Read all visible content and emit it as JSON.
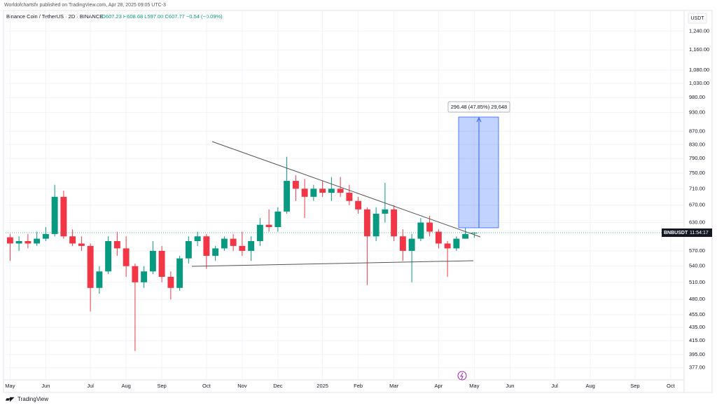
{
  "header": {
    "publisher": "Worldofchartsfx published on TradingView.com, Apr 28, 2025 09:05 UTC-3",
    "symbol": "Binance Coin / TetherUS · 2D · BINANCE",
    "ohlc": "O607.23 H608.68 L597.00 C607.77 −0.54 (−0.09%)",
    "currency": "USDT",
    "price_label": "BNBUSDT",
    "countdown": "11:54:17",
    "measure": "296.48 (47.85%) 29,648",
    "footer": "TradingView"
  },
  "chart_data": {
    "type": "candlestick",
    "log_scale": true,
    "grid": true,
    "up_color": "#089981",
    "down_color": "#f23645",
    "categories": [
      "May",
      null,
      null,
      null,
      "Jun",
      null,
      null,
      null,
      null,
      "Jul",
      null,
      null,
      null,
      "Aug",
      null,
      null,
      null,
      "Sep",
      null,
      null,
      null,
      null,
      "Oct",
      null,
      null,
      null,
      "Nov",
      null,
      null,
      null,
      "Dec",
      null,
      null,
      null,
      null,
      "2025",
      null,
      null,
      null,
      "Feb",
      null,
      null,
      null,
      "Mar",
      null,
      null,
      null,
      null,
      "Apr",
      null,
      null,
      null,
      "May",
      null,
      null,
      null,
      "Jun",
      null,
      null,
      null,
      null,
      "Jul",
      null,
      null,
      null,
      "Aug",
      null,
      null,
      null,
      null,
      "Sep",
      null,
      null,
      null,
      "Oct",
      null
    ],
    "open": [
      598,
      585,
      590,
      585,
      595,
      605,
      690,
      600,
      585,
      580,
      500,
      530,
      590,
      575,
      540,
      510,
      530,
      570,
      520,
      500,
      555,
      590,
      600,
      560,
      575,
      595,
      580,
      570,
      590,
      625,
      620,
      655,
      730,
      710,
      690,
      710,
      700,
      710,
      700,
      680,
      660,
      600,
      650,
      660,
      600,
      570,
      595,
      630,
      610,
      585,
      575,
      595,
      607.23,
      null,
      null,
      null,
      null,
      null,
      null,
      null,
      null,
      null,
      null,
      null,
      null,
      null,
      null,
      null,
      null,
      null,
      null,
      null,
      null,
      null,
      null,
      null
    ],
    "high": [
      605,
      600,
      605,
      610,
      620,
      720,
      705,
      615,
      600,
      585,
      540,
      600,
      610,
      600,
      545,
      540,
      590,
      580,
      530,
      560,
      600,
      610,
      605,
      580,
      600,
      605,
      610,
      600,
      640,
      660,
      665,
      795,
      745,
      735,
      720,
      730,
      740,
      740,
      720,
      690,
      665,
      665,
      725,
      670,
      615,
      605,
      640,
      645,
      615,
      590,
      600,
      618,
      608.68,
      null,
      null,
      null,
      null,
      null,
      null,
      null,
      null,
      null,
      null,
      null,
      null,
      null,
      null,
      null,
      null,
      null,
      null,
      null,
      null,
      null,
      null,
      null
    ],
    "low": [
      550,
      570,
      575,
      580,
      590,
      600,
      595,
      580,
      570,
      460,
      490,
      525,
      560,
      520,
      400,
      500,
      525,
      510,
      480,
      495,
      545,
      580,
      535,
      550,
      570,
      570,
      560,
      550,
      580,
      610,
      610,
      650,
      680,
      640,
      680,
      690,
      680,
      690,
      670,
      650,
      505,
      590,
      630,
      590,
      550,
      510,
      590,
      600,
      575,
      520,
      570,
      595,
      597.0,
      null,
      null,
      null,
      null,
      null,
      null,
      null,
      null,
      null,
      null,
      null,
      null,
      null,
      null,
      null,
      null,
      null,
      null,
      null,
      null,
      null,
      null,
      null
    ],
    "close": [
      585,
      590,
      585,
      595,
      605,
      690,
      600,
      585,
      580,
      500,
      530,
      590,
      575,
      540,
      510,
      530,
      570,
      520,
      500,
      555,
      590,
      600,
      560,
      575,
      595,
      580,
      570,
      590,
      625,
      620,
      655,
      730,
      710,
      690,
      710,
      700,
      710,
      700,
      680,
      660,
      600,
      650,
      660,
      600,
      570,
      595,
      630,
      610,
      585,
      575,
      595,
      605,
      607.77,
      null,
      null,
      null,
      null,
      null,
      null,
      null,
      null,
      null,
      null,
      null,
      null,
      null,
      null,
      null,
      null,
      null,
      null,
      null,
      null,
      null,
      null,
      null
    ],
    "last": 607.77,
    "ylim": [
      363,
      1350
    ],
    "yticks": [
      {
        "value": 1240,
        "label": "1,240.00"
      },
      {
        "value": 1160,
        "label": "1,160.00"
      },
      {
        "value": 1080,
        "label": "1,080.00"
      },
      {
        "value": 1030,
        "label": "1,030.00"
      },
      {
        "value": 980,
        "label": "980.00"
      },
      {
        "value": 930,
        "label": "930.00"
      },
      {
        "value": 870,
        "label": "870.00"
      },
      {
        "value": 830,
        "label": "830.00"
      },
      {
        "value": 790,
        "label": "790.00"
      },
      {
        "value": 750,
        "label": "750.00"
      },
      {
        "value": 710,
        "label": "710.00"
      },
      {
        "value": 670,
        "label": "670.00"
      },
      {
        "value": 630,
        "label": "630.00"
      },
      {
        "value": 570,
        "label": "570.00"
      },
      {
        "value": 540,
        "label": "540.00"
      },
      {
        "value": 510,
        "label": "510.00"
      },
      {
        "value": 480,
        "label": "480.00"
      },
      {
        "value": 455,
        "label": "455.00"
      },
      {
        "value": 435,
        "label": "435.00"
      },
      {
        "value": 415,
        "label": "415.00"
      },
      {
        "value": 395,
        "label": "395.00"
      },
      {
        "value": 377,
        "label": "377.00"
      }
    ]
  }
}
